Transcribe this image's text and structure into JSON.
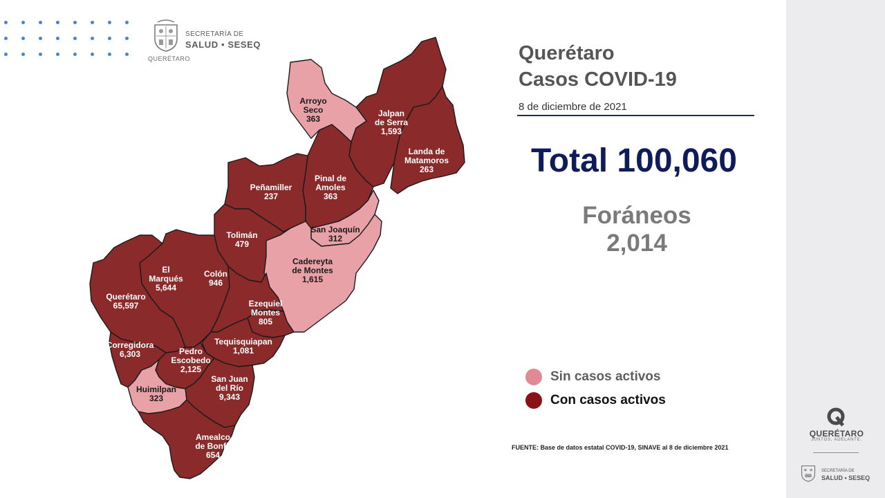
{
  "header": {
    "secretaria_line1": "SECRETARÍA DE",
    "secretaria_line2": "SALUD • SESEQ",
    "state_wordmark": "QUERÉTARO"
  },
  "title": {
    "line1": "Querétaro",
    "line2": "Casos COVID-19"
  },
  "date": "8 de diciembre de 2021",
  "total": "Total 100,060",
  "foraneos": {
    "label": "Foráneos",
    "value": "2,014"
  },
  "legend": [
    {
      "label": "Sin casos activos",
      "color": "#e08a93",
      "text_color": "#5e5e5e"
    },
    {
      "label": "Con casos activos",
      "color": "#8b1214",
      "text_color": "#111111"
    }
  ],
  "source": "FUENTE: Base de datos estatal COVID-19, SINAVE al 8 de diciembre 2021",
  "map": {
    "colors": {
      "active": "#8b2a2a",
      "inactive": "#e8a1a7",
      "border": "#1a1a1a"
    },
    "municipalities": [
      {
        "name": "Arroyo\nSeco",
        "cases": "363",
        "status": "inactive"
      },
      {
        "name": "Jalpan\nde Serra",
        "cases": "1,593",
        "status": "active"
      },
      {
        "name": "Landa de\nMatamoros",
        "cases": "263",
        "status": "active"
      },
      {
        "name": "Pinal de\nAmoles",
        "cases": "363",
        "status": "active"
      },
      {
        "name": "Peñamiller",
        "cases": "237",
        "status": "active"
      },
      {
        "name": "San Joaquín",
        "cases": "312",
        "status": "inactive"
      },
      {
        "name": "Tolimán",
        "cases": "479",
        "status": "active"
      },
      {
        "name": "Cadereyta\nde Montes",
        "cases": "1,615",
        "status": "inactive"
      },
      {
        "name": "El\nMarqués",
        "cases": "5,644",
        "status": "active"
      },
      {
        "name": "Colón",
        "cases": "946",
        "status": "active"
      },
      {
        "name": "Querétaro",
        "cases": "65,597",
        "status": "active"
      },
      {
        "name": "Ezequiel\nMontes",
        "cases": "805",
        "status": "active"
      },
      {
        "name": "Tequisquiapan",
        "cases": "1,081",
        "status": "active"
      },
      {
        "name": "Corregidora",
        "cases": "6,303",
        "status": "active"
      },
      {
        "name": "Pedro\nEscobedo",
        "cases": "2,125",
        "status": "active"
      },
      {
        "name": "San Juan\ndel Río",
        "cases": "9,343",
        "status": "active"
      },
      {
        "name": "Huimilpan",
        "cases": "323",
        "status": "inactive"
      },
      {
        "name": "Amealco\nde Bonfil",
        "cases": "654",
        "status": "active"
      }
    ]
  },
  "sidebar": {
    "brand": "QUERÉTARO",
    "slogan": "JUNTOS, ADELANTE.",
    "secretaria_line1": "SECRETARÍA DE",
    "secretaria_line2": "SALUD • SESEQ"
  }
}
